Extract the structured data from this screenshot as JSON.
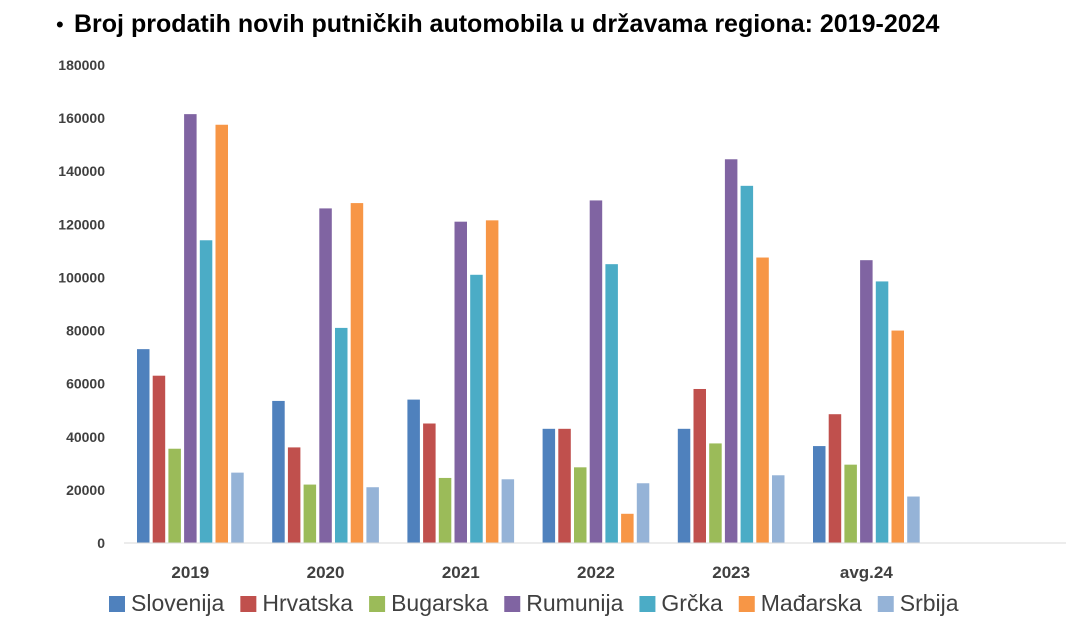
{
  "chart_data": {
    "type": "bar",
    "title": "Broj prodatih novih putničkih automobila u državama regiona:  2019-2024",
    "title_bullet": "•",
    "xlabel": "",
    "ylabel": "",
    "ylim": [
      0,
      180000
    ],
    "yticks": [
      0,
      20000,
      40000,
      60000,
      80000,
      100000,
      120000,
      140000,
      160000,
      180000
    ],
    "grid": false,
    "legend_position": "bottom",
    "categories": [
      "2019",
      "2020",
      "2021",
      "2022",
      "2023",
      "avg.24"
    ],
    "series": [
      {
        "name": "Slovenija",
        "color": "#4F81BD",
        "values": [
          73000,
          53500,
          54000,
          43000,
          43000,
          36500
        ]
      },
      {
        "name": "Hrvatska",
        "color": "#C0504D",
        "values": [
          63000,
          36000,
          45000,
          43000,
          58000,
          48500
        ]
      },
      {
        "name": "Bugarska",
        "color": "#9BBB59",
        "values": [
          35500,
          22000,
          24500,
          28500,
          37500,
          29500
        ]
      },
      {
        "name": "Rumunija",
        "color": "#8064A2",
        "values": [
          161500,
          126000,
          121000,
          129000,
          144500,
          106500
        ]
      },
      {
        "name": "Grčka",
        "color": "#4BACC6",
        "values": [
          114000,
          81000,
          101000,
          105000,
          134500,
          98500
        ]
      },
      {
        "name": "Mađarska",
        "color": "#F79646",
        "values": [
          157500,
          128000,
          121500,
          11000,
          107500,
          80000
        ]
      },
      {
        "name": "Srbija",
        "color": "#95B3D7",
        "values": [
          26500,
          21000,
          24000,
          22500,
          25500,
          17500
        ]
      }
    ]
  }
}
